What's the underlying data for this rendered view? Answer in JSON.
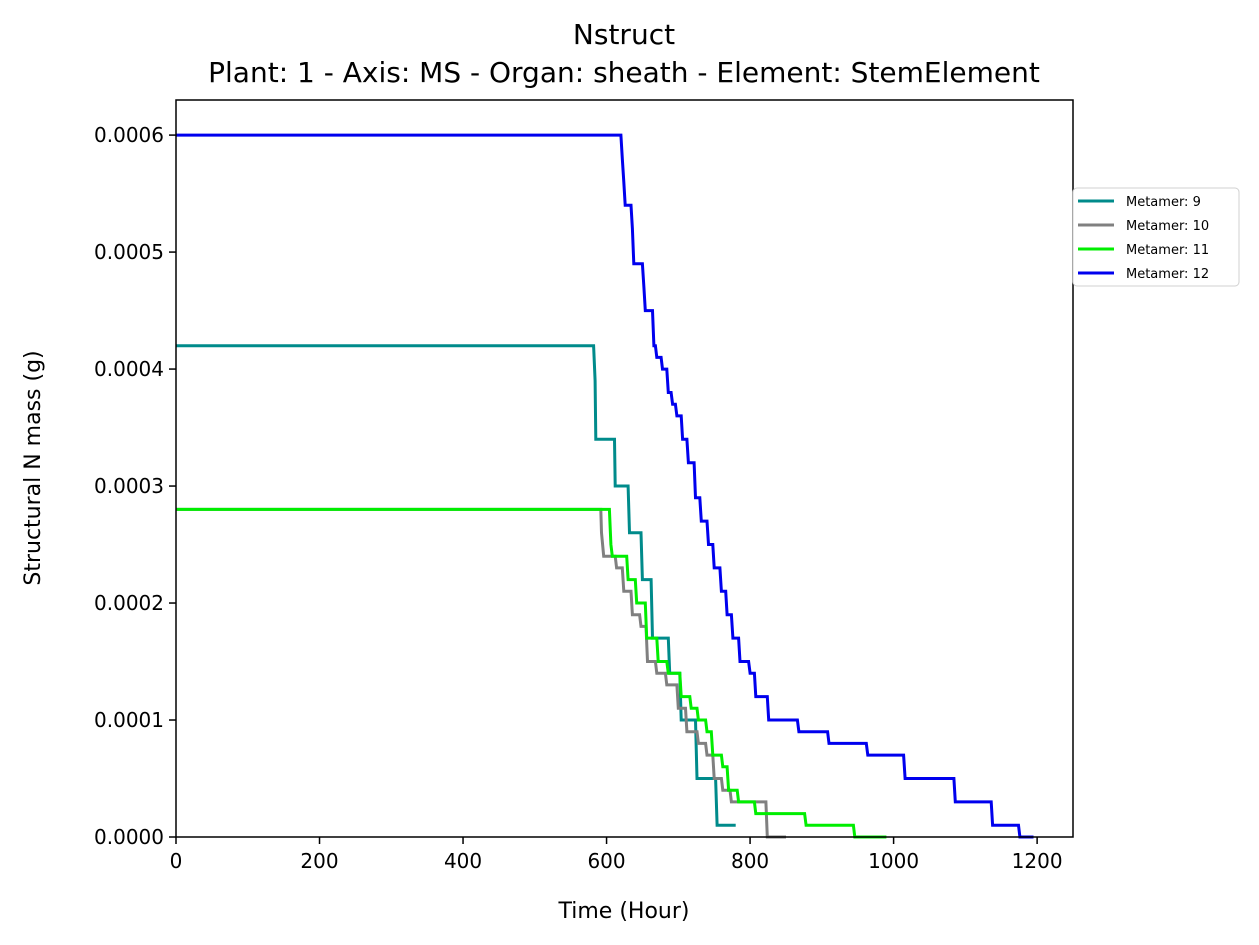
{
  "chart_data": {
    "type": "line",
    "title": "Nstruct",
    "subtitle": "Plant: 1 - Axis: MS - Organ: sheath - Element: StemElement",
    "xlabel": "Time (Hour)",
    "ylabel": "Structural N mass (g)",
    "xlim": [
      0,
      1250
    ],
    "ylim": [
      0,
      0.00063
    ],
    "xticks": [
      0,
      200,
      400,
      600,
      800,
      1000,
      1200
    ],
    "xtick_labels": [
      "0",
      "200",
      "400",
      "600",
      "800",
      "1000",
      "1200"
    ],
    "yticks": [
      0,
      0.0001,
      0.0002,
      0.0003,
      0.0004,
      0.0005,
      0.0006
    ],
    "ytick_labels": [
      "0.0000",
      "0.0001",
      "0.0002",
      "0.0003",
      "0.0004",
      "0.0005",
      "0.0006"
    ],
    "grid": false,
    "legend_position": "outside-right",
    "series": [
      {
        "name": "Metamer: 9",
        "color": "#008b8b",
        "points": [
          [
            0,
            0.00042
          ],
          [
            582,
            0.00042
          ],
          [
            584,
            0.00039
          ],
          [
            585,
            0.00034
          ],
          [
            611,
            0.00034
          ],
          [
            612,
            0.0003
          ],
          [
            630,
            0.0003
          ],
          [
            632,
            0.00026
          ],
          [
            648,
            0.00026
          ],
          [
            650,
            0.00022
          ],
          [
            662,
            0.00022
          ],
          [
            664,
            0.00017
          ],
          [
            686,
            0.00017
          ],
          [
            688,
            0.00014
          ],
          [
            702,
            0.00014
          ],
          [
            704,
            0.0001
          ],
          [
            724,
            0.0001
          ],
          [
            726,
            5e-05
          ],
          [
            752,
            5e-05
          ],
          [
            754,
            1e-05
          ],
          [
            780,
            1e-05
          ]
        ]
      },
      {
        "name": "Metamer: 10",
        "color": "#808080",
        "points": [
          [
            0,
            0.00028
          ],
          [
            592,
            0.00028
          ],
          [
            593,
            0.00026
          ],
          [
            596,
            0.00024
          ],
          [
            612,
            0.00024
          ],
          [
            614,
            0.00023
          ],
          [
            622,
            0.00023
          ],
          [
            624,
            0.00021
          ],
          [
            634,
            0.00021
          ],
          [
            636,
            0.00019
          ],
          [
            646,
            0.00019
          ],
          [
            648,
            0.00018
          ],
          [
            655,
            0.00018
          ],
          [
            657,
            0.00015
          ],
          [
            668,
            0.00015
          ],
          [
            670,
            0.00014
          ],
          [
            682,
            0.00014
          ],
          [
            684,
            0.00013
          ],
          [
            698,
            0.00013
          ],
          [
            700,
            0.00011
          ],
          [
            710,
            0.00011
          ],
          [
            712,
            9e-05
          ],
          [
            726,
            9e-05
          ],
          [
            728,
            8e-05
          ],
          [
            738,
            8e-05
          ],
          [
            740,
            7e-05
          ],
          [
            748,
            7e-05
          ],
          [
            750,
            5e-05
          ],
          [
            760,
            5e-05
          ],
          [
            762,
            4e-05
          ],
          [
            772,
            4e-05
          ],
          [
            774,
            3e-05
          ],
          [
            822,
            3e-05
          ],
          [
            824,
            0.0
          ],
          [
            850,
            0.0
          ]
        ]
      },
      {
        "name": "Metamer: 11",
        "color": "#00ee00",
        "points": [
          [
            0,
            0.00028
          ],
          [
            604,
            0.00028
          ],
          [
            606,
            0.00025
          ],
          [
            608,
            0.00024
          ],
          [
            628,
            0.00024
          ],
          [
            630,
            0.00022
          ],
          [
            640,
            0.00022
          ],
          [
            642,
            0.0002
          ],
          [
            654,
            0.0002
          ],
          [
            656,
            0.00017
          ],
          [
            670,
            0.00017
          ],
          [
            672,
            0.00015
          ],
          [
            684,
            0.00015
          ],
          [
            686,
            0.00014
          ],
          [
            702,
            0.00014
          ],
          [
            704,
            0.00012
          ],
          [
            716,
            0.00012
          ],
          [
            718,
            0.00011
          ],
          [
            726,
            0.00011
          ],
          [
            728,
            0.0001
          ],
          [
            738,
            0.0001
          ],
          [
            740,
            9e-05
          ],
          [
            746,
            9e-05
          ],
          [
            748,
            7e-05
          ],
          [
            760,
            7e-05
          ],
          [
            762,
            6e-05
          ],
          [
            768,
            6e-05
          ],
          [
            770,
            4e-05
          ],
          [
            782,
            4e-05
          ],
          [
            784,
            3e-05
          ],
          [
            806,
            3e-05
          ],
          [
            808,
            2e-05
          ],
          [
            876,
            2e-05
          ],
          [
            878,
            1e-05
          ],
          [
            944,
            1e-05
          ],
          [
            946,
            0.0
          ],
          [
            990,
            0.0
          ]
        ]
      },
      {
        "name": "Metamer: 12",
        "color": "#0000ee",
        "points": [
          [
            0,
            0.0006
          ],
          [
            620,
            0.0006
          ],
          [
            622,
            0.00058
          ],
          [
            624,
            0.00056
          ],
          [
            626,
            0.00054
          ],
          [
            634,
            0.00054
          ],
          [
            636,
            0.00052
          ],
          [
            638,
            0.00049
          ],
          [
            650,
            0.00049
          ],
          [
            652,
            0.00047
          ],
          [
            654,
            0.00045
          ],
          [
            664,
            0.00045
          ],
          [
            666,
            0.00042
          ],
          [
            668,
            0.00042
          ],
          [
            670,
            0.00041
          ],
          [
            676,
            0.00041
          ],
          [
            678,
            0.0004
          ],
          [
            684,
            0.0004
          ],
          [
            686,
            0.00038
          ],
          [
            690,
            0.00038
          ],
          [
            692,
            0.00037
          ],
          [
            696,
            0.00037
          ],
          [
            698,
            0.00036
          ],
          [
            704,
            0.00036
          ],
          [
            706,
            0.00034
          ],
          [
            712,
            0.00034
          ],
          [
            714,
            0.00032
          ],
          [
            722,
            0.00032
          ],
          [
            724,
            0.00029
          ],
          [
            730,
            0.00029
          ],
          [
            732,
            0.00027
          ],
          [
            740,
            0.00027
          ],
          [
            742,
            0.00025
          ],
          [
            748,
            0.00025
          ],
          [
            750,
            0.00023
          ],
          [
            758,
            0.00023
          ],
          [
            760,
            0.00021
          ],
          [
            766,
            0.00021
          ],
          [
            768,
            0.00019
          ],
          [
            774,
            0.00019
          ],
          [
            776,
            0.00017
          ],
          [
            784,
            0.00017
          ],
          [
            786,
            0.00015
          ],
          [
            798,
            0.00015
          ],
          [
            800,
            0.00014
          ],
          [
            806,
            0.00014
          ],
          [
            808,
            0.00012
          ],
          [
            824,
            0.00012
          ],
          [
            826,
            0.0001
          ],
          [
            866,
            0.0001
          ],
          [
            868,
            9e-05
          ],
          [
            908,
            9e-05
          ],
          [
            910,
            8e-05
          ],
          [
            962,
            8e-05
          ],
          [
            964,
            7e-05
          ],
          [
            1014,
            7e-05
          ],
          [
            1016,
            5e-05
          ],
          [
            1084,
            5e-05
          ],
          [
            1086,
            3e-05
          ],
          [
            1136,
            3e-05
          ],
          [
            1138,
            1e-05
          ],
          [
            1174,
            1e-05
          ],
          [
            1176,
            0.0
          ],
          [
            1195,
            0.0
          ]
        ]
      }
    ]
  }
}
